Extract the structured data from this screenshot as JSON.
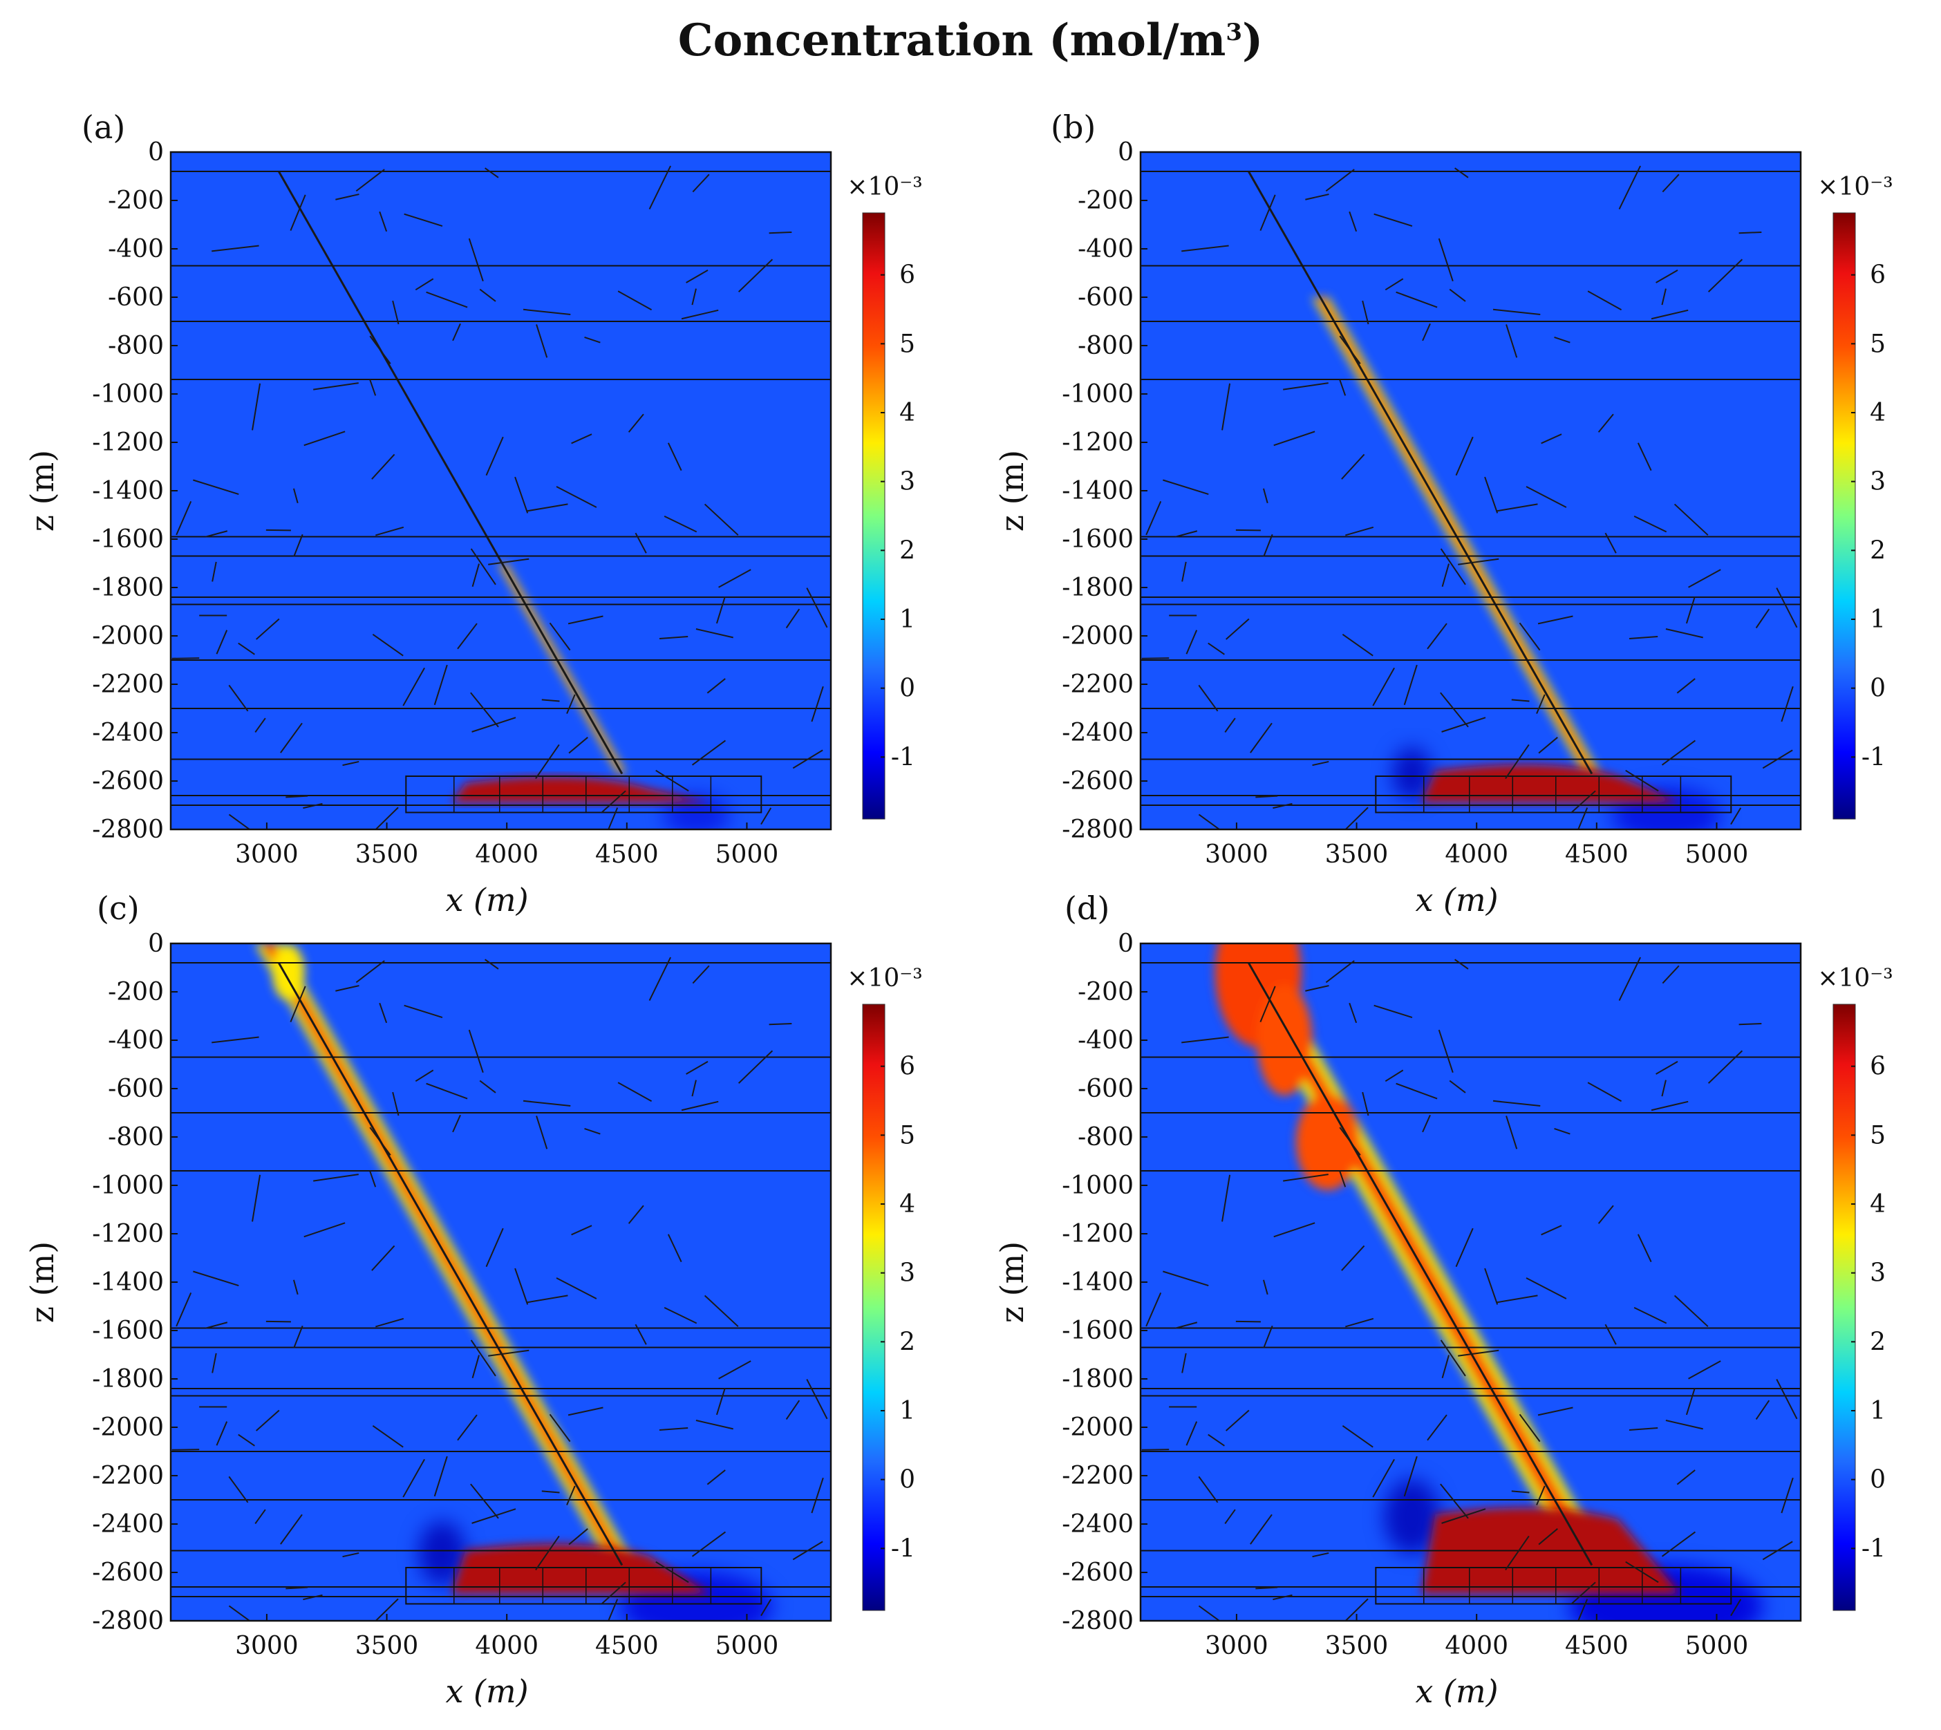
{
  "figure": {
    "title": "Concentration (mol/m³)",
    "title_main": "Concentration (mol/m",
    "title_sup": "3",
    "title_end": ")"
  },
  "chart_data": [
    {
      "type": "heatmap",
      "label": "(a)",
      "xlabel": "x (m)",
      "ylabel": "z (m)",
      "xlim": [
        2600,
        5350
      ],
      "ylim": [
        -2800,
        0
      ],
      "xticks": [
        3000,
        3500,
        4000,
        4500,
        5000
      ],
      "yticks": [
        0,
        -200,
        -400,
        -600,
        -800,
        -1000,
        -1200,
        -1400,
        -1600,
        -1800,
        -2000,
        -2200,
        -2400,
        -2600,
        -2800
      ],
      "colorbar": {
        "multiplier": "×10⁻³",
        "ticks": [
          6,
          5,
          4,
          3,
          2,
          1,
          0,
          -1
        ],
        "range": [
          -1.9,
          6.9
        ]
      },
      "background_value": 0,
      "fault_trace": [
        [
          3050,
          -80
        ],
        [
          4480,
          -2570
        ]
      ],
      "leak_width_m": 18,
      "leak_extent_z": -1700,
      "reservoir": {
        "x": [
          3770,
          4850
        ],
        "z": [
          -2580,
          -2690
        ],
        "value": 6.5
      },
      "plume_top_z": -2580
    },
    {
      "type": "heatmap",
      "label": "(b)",
      "xlabel": "x (m)",
      "ylabel": "z (m)",
      "xlim": [
        2600,
        5350
      ],
      "ylim": [
        -2800,
        0
      ],
      "xticks": [
        3000,
        3500,
        4000,
        4500,
        5000
      ],
      "yticks": [
        0,
        -200,
        -400,
        -600,
        -800,
        -1000,
        -1200,
        -1400,
        -1600,
        -1800,
        -2000,
        -2200,
        -2400,
        -2600,
        -2800
      ],
      "colorbar": {
        "multiplier": "×10⁻³",
        "ticks": [
          6,
          5,
          4,
          3,
          2,
          1,
          0,
          -1
        ],
        "range": [
          -1.9,
          6.9
        ]
      },
      "background_value": 0,
      "fault_trace": [
        [
          3050,
          -80
        ],
        [
          4480,
          -2570
        ]
      ],
      "leak_width_m": 35,
      "leak_extent_z": -600,
      "reservoir": {
        "x": [
          3770,
          4850
        ],
        "z": [
          -2530,
          -2690
        ],
        "value": 6.5
      },
      "plume_top_z": -2530
    },
    {
      "type": "heatmap",
      "label": "(c)",
      "xlabel": "x (m)",
      "ylabel": "z (m)",
      "xlim": [
        2600,
        5350
      ],
      "ylim": [
        -2800,
        0
      ],
      "xticks": [
        3000,
        3500,
        4000,
        4500,
        5000
      ],
      "yticks": [
        0,
        -200,
        -400,
        -600,
        -800,
        -1000,
        -1200,
        -1400,
        -1600,
        -1800,
        -2000,
        -2200,
        -2400,
        -2600,
        -2800
      ],
      "colorbar": {
        "multiplier": "×10⁻³",
        "ticks": [
          6,
          5,
          4,
          3,
          2,
          1,
          0,
          -1
        ],
        "range": [
          -1.9,
          6.9
        ]
      },
      "background_value": 0,
      "fault_trace": [
        [
          3050,
          -80
        ],
        [
          4480,
          -2570
        ]
      ],
      "leak_width_m": 55,
      "leak_extent_z": 0,
      "reservoir": {
        "x": [
          3770,
          4850
        ],
        "z": [
          -2480,
          -2690
        ],
        "value": 6.5
      },
      "plume_top_z": -2480
    },
    {
      "type": "heatmap",
      "label": "(d)",
      "xlabel": "x (m)",
      "ylabel": "z (m)",
      "xlim": [
        2600,
        5350
      ],
      "ylim": [
        -2800,
        0
      ],
      "xticks": [
        3000,
        3500,
        4000,
        4500,
        5000
      ],
      "yticks": [
        0,
        -200,
        -400,
        -600,
        -800,
        -1000,
        -1200,
        -1400,
        -1600,
        -1800,
        -2000,
        -2200,
        -2400,
        -2600,
        -2800
      ],
      "colorbar": {
        "multiplier": "×10⁻³",
        "ticks": [
          6,
          5,
          4,
          3,
          2,
          1,
          0,
          -1
        ],
        "range": [
          -1.9,
          6.9
        ]
      },
      "background_value": 0,
      "fault_trace": [
        [
          3050,
          -80
        ],
        [
          4480,
          -2570
        ]
      ],
      "leak_width_m": 80,
      "leak_extent_z": 0,
      "reservoir": {
        "x": [
          3770,
          4850
        ],
        "z": [
          -2330,
          -2690
        ],
        "value": 6.5
      },
      "plume_top_z": -2330
    }
  ]
}
